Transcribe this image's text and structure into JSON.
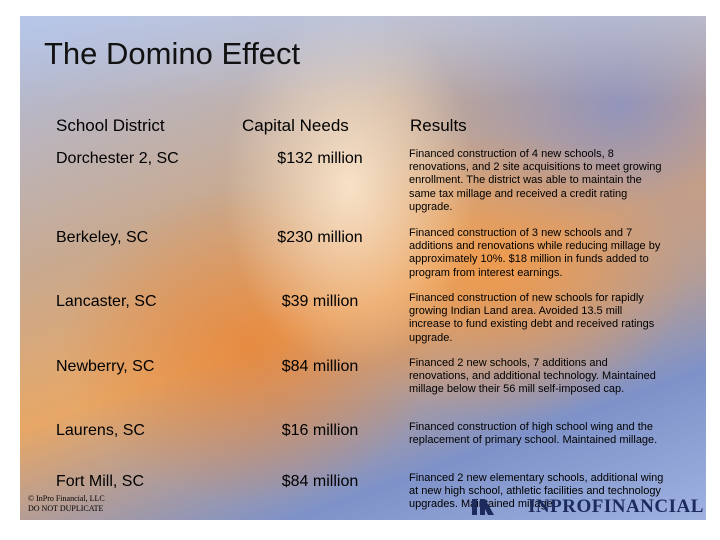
{
  "slide": {
    "title": "The Domino Effect",
    "headers": {
      "district": "School District",
      "needs": "Capital Needs",
      "results": "Results"
    },
    "rows": [
      {
        "district": "Dorchester 2, SC",
        "needs": "$132 million",
        "result": "Financed construction of 4 new schools, 8 renovations, and 2 site acquisitions to meet growing enrollment. The district was able to maintain the same tax millage and received a credit rating upgrade."
      },
      {
        "district": "Berkeley, SC",
        "needs": "$230 million",
        "result": "Financed construction of 3 new schools and 7 additions and renovations while reducing millage by approximately 10%. $18 million in funds added to program from interest earnings."
      },
      {
        "district": "Lancaster, SC",
        "needs": "$39 million",
        "result": "Financed construction of new schools for rapidly growing Indian Land area. Avoided 13.5 mill increase to fund existing debt and received ratings upgrade."
      },
      {
        "district": "Newberry, SC",
        "needs": "$84 million",
        "result": "Financed 2 new schools, 7 additions and renovations, and additional technology. Maintained millage below their 56 mill self-imposed cap."
      },
      {
        "district": "Laurens, SC",
        "needs": "$16 million",
        "result": "Financed construction of high school wing and the replacement of primary school. Maintained millage."
      },
      {
        "district": "Fort Mill, SC",
        "needs": "$84 million",
        "result": "Financed 2 new elementary schools, additional wing at new high school, athletic facilities and technology upgrades. Maintained millage."
      }
    ],
    "footer": {
      "copyright_line1": "© InPro Financial, LLC",
      "copyright_line2": "DO NOT DUPLICATE",
      "logo_text": "INPROFINANCIAL"
    }
  }
}
